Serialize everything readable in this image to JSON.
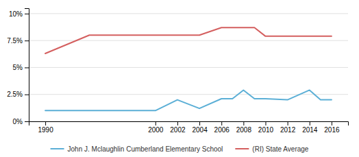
{
  "chart_data": {
    "type": "line",
    "series": [
      {
        "name": "John J. Mclaughlin Cumberland Elementary School",
        "color": "#5bafd6",
        "x": [
          1990,
          2000,
          2002,
          2004,
          2006,
          2007,
          2008,
          2009,
          2010,
          2012,
          2014,
          2015,
          2016
        ],
        "values": [
          1.0,
          1.0,
          2.0,
          1.2,
          2.1,
          2.1,
          2.9,
          2.1,
          2.1,
          2.0,
          2.9,
          2.0,
          2.0
        ]
      },
      {
        "name": "(RI) State Average",
        "color": "#d45f5f",
        "x": [
          1990,
          1994,
          2000,
          2002,
          2004,
          2006,
          2007,
          2008,
          2009,
          2010,
          2011,
          2012,
          2014,
          2016
        ],
        "values": [
          6.3,
          8.0,
          8.0,
          8.0,
          8.0,
          8.7,
          8.7,
          8.7,
          8.7,
          7.9,
          7.9,
          7.9,
          7.9,
          7.9
        ]
      }
    ],
    "xlim": [
      1988.5,
      2017.5
    ],
    "ylim": [
      0,
      10.5
    ],
    "xticks": [
      1990,
      2000,
      2002,
      2004,
      2006,
      2008,
      2010,
      2012,
      2014,
      2016
    ],
    "yticks": [
      {
        "value": 0,
        "label": "0%"
      },
      {
        "value": 2.5,
        "label": "2.5%"
      },
      {
        "value": 5.0,
        "label": "5%"
      },
      {
        "value": 7.5,
        "label": "7.5%"
      },
      {
        "value": 10.0,
        "label": "10%"
      }
    ],
    "grid": true,
    "legend": "bottom"
  }
}
